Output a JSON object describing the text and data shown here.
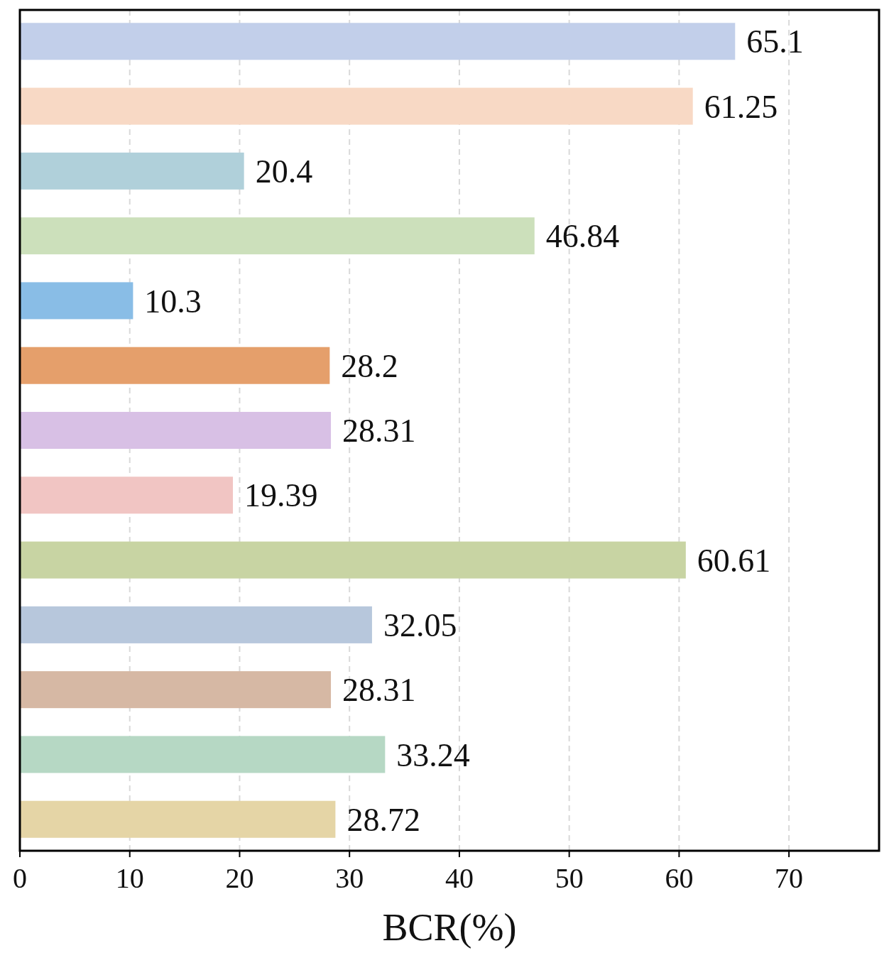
{
  "chart_data": {
    "type": "bar",
    "orientation": "horizontal",
    "xlabel": "BCR(%)",
    "categories": [
      null,
      null,
      null,
      null,
      null,
      null,
      null,
      null,
      null,
      null,
      null,
      null,
      null
    ],
    "values": [
      65.1,
      61.25,
      20.4,
      46.84,
      10.3,
      28.2,
      28.31,
      19.39,
      60.61,
      32.05,
      28.31,
      33.24,
      28.72
    ],
    "colors": [
      "#c2cfea",
      "#f8d9c5",
      "#b0d0da",
      "#cce0bb",
      "#89bde6",
      "#e59f6b",
      "#d8c0e5",
      "#f1c5c3",
      "#c8d4a3",
      "#b7c7dc",
      "#d6b8a4",
      "#b6d8c4",
      "#e5d5a6"
    ],
    "xlim": [
      0,
      78.2
    ],
    "xticks": [
      0,
      10,
      20,
      30,
      40,
      50,
      60,
      70
    ],
    "grid": "x",
    "line_style": "dashed",
    "data_labels": true,
    "tick_labels": "x"
  }
}
